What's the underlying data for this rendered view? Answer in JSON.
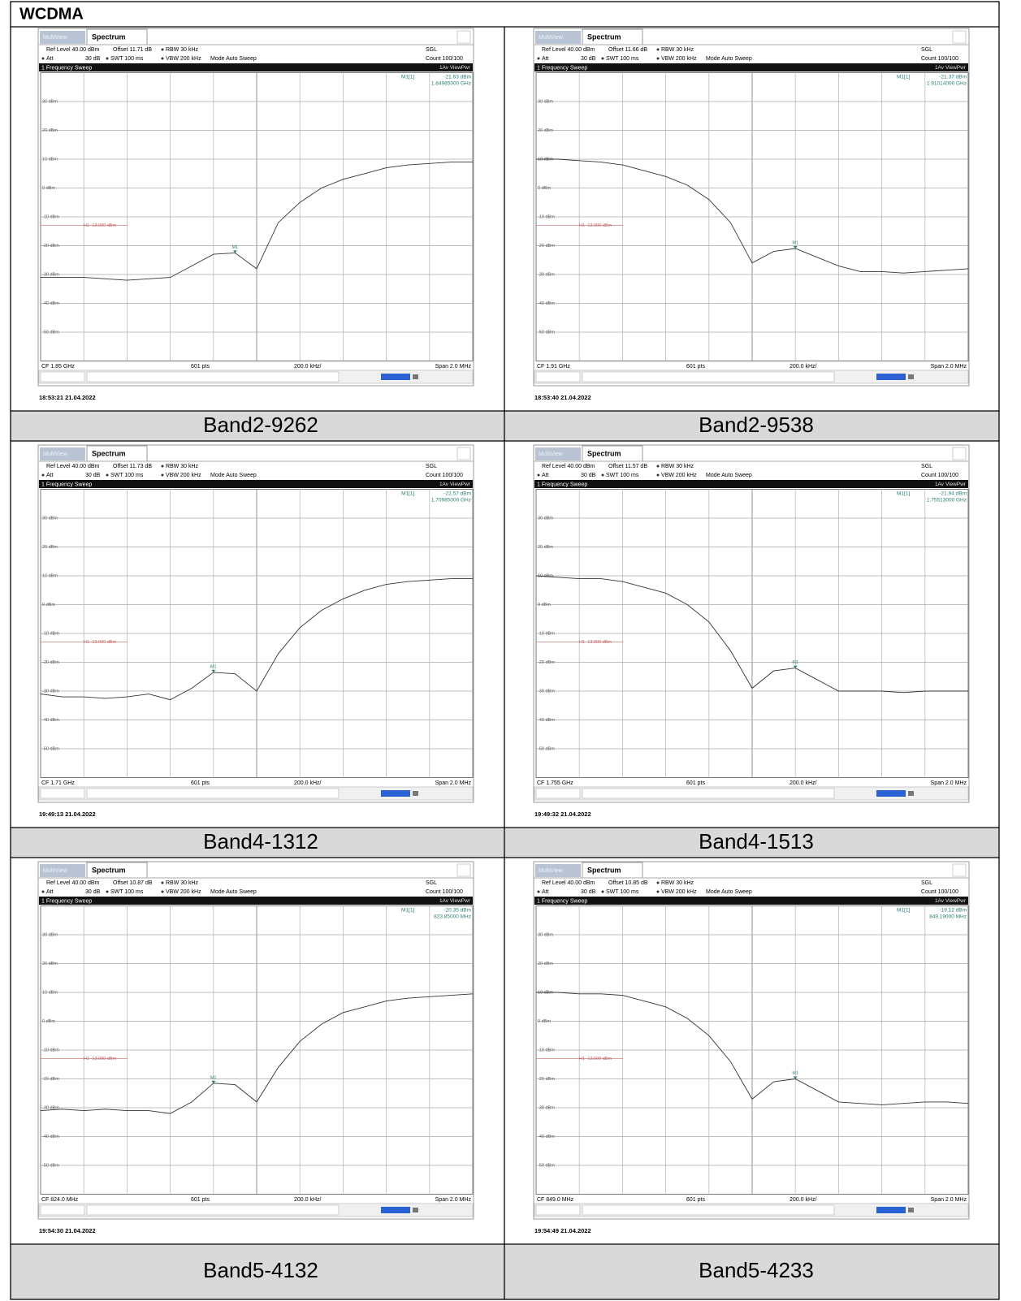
{
  "title": "WCDMA",
  "common": {
    "tabs": [
      "MultiView",
      "Spectrum"
    ],
    "ref_level": "Ref Level 40.00 dBm",
    "att": "Att",
    "att_value": "30 dB",
    "swt": "SWT 100 ms",
    "rbw": "RBW 30 kHz",
    "vbw": "VBW 200 kHz",
    "mode": "Mode Auto Sweep",
    "sgl": "SGL",
    "count": "Count 100/100",
    "sweep": "1 Frequency Sweep",
    "trace_mode": "1Av ViewPwr",
    "marker": "M1[1]",
    "marker_tag": "M1",
    "limit_label": "H1 -13.000 dBm",
    "limit_value": -13,
    "points": "601 pts",
    "division": "200.0 kHz/",
    "span": "Span 2.0 MHz",
    "ylim": [
      -60,
      40
    ],
    "yticks": [
      {
        "value": 30,
        "label": "30 dBm"
      },
      {
        "value": 20,
        "label": "20 dBm"
      },
      {
        "value": 10,
        "label": "10 dBm"
      },
      {
        "value": 0,
        "label": "0 dBm"
      },
      {
        "value": -10,
        "label": "-10 dBm"
      },
      {
        "value": -20,
        "label": "-20 dBm"
      },
      {
        "value": -30,
        "label": "-30 dBm"
      },
      {
        "value": -40,
        "label": "-40 dBm"
      },
      {
        "value": -50,
        "label": "-50 dBm"
      }
    ]
  },
  "panels": [
    {
      "caption": "Band2-9262",
      "offset": "Offset 11.71 dB",
      "marker_level": "-21.63 dBm",
      "marker_frequency": "1.84985000 GHz",
      "cf": "CF 1.85 GHz",
      "timestamp": "18:53:21 21.04.2022",
      "trace": [
        -31,
        -31,
        -31,
        -31.5,
        -32,
        -31.5,
        -31,
        -27,
        -23,
        -22.5,
        -28,
        -12,
        -5,
        0,
        3,
        5,
        7,
        8,
        8.5,
        9,
        9
      ]
    },
    {
      "caption": "Band2-9538",
      "offset": "Offset 11.66 dB",
      "marker_level": "-21.37 dBm",
      "marker_frequency": "1.91014000 GHz",
      "cf": "CF 1.91 GHz",
      "timestamp": "18:53:40 21.04.2022",
      "trace": [
        10,
        10,
        9.5,
        9,
        8,
        6,
        4,
        1,
        -4,
        -12,
        -26,
        -22,
        -21,
        -24,
        -27,
        -29,
        -29,
        -29.5,
        -29,
        -28.5,
        -28
      ]
    },
    {
      "caption": "Band4-1312",
      "offset": "Offset 11.73 dB",
      "marker_level": "-22.57 dBm",
      "marker_frequency": "1.70985000 GHz",
      "cf": "CF 1.71 GHz",
      "timestamp": "19:49:13 21.04.2022",
      "trace": [
        -31,
        -32,
        -32,
        -32.5,
        -32,
        -31,
        -33,
        -29,
        -23.5,
        -24,
        -30,
        -17,
        -8,
        -2,
        2,
        5,
        7,
        8,
        8.5,
        9,
        9
      ]
    },
    {
      "caption": "Band4-1513",
      "offset": "Offset 11.57 dB",
      "marker_level": "-21.94 dBm",
      "marker_frequency": "1.75513000 GHz",
      "cf": "CF 1.755 GHz",
      "timestamp": "19:49:32 21.04.2022",
      "trace": [
        10,
        9.5,
        9,
        9,
        8,
        6,
        4,
        0,
        -6,
        -16,
        -29,
        -23,
        -22,
        -26,
        -30,
        -30,
        -30,
        -30.5,
        -30,
        -30,
        -30
      ]
    },
    {
      "caption": "Band5-4132",
      "offset": "Offset 10.87 dB",
      "marker_level": "-20.35 dBm",
      "marker_frequency": "823.85000 MHz",
      "cf": "CF 824.0 MHz",
      "timestamp": "19:54:30 21.04.2022",
      "trace": [
        -31,
        -30.5,
        -31,
        -30.5,
        -31,
        -31,
        -32,
        -28,
        -21.5,
        -22,
        -28,
        -16,
        -7,
        -1,
        3,
        5,
        7,
        8,
        8.5,
        9,
        9.5
      ]
    },
    {
      "caption": "Band5-4233",
      "offset": "Offset 10.85 dB",
      "marker_level": "-19.12 dBm",
      "marker_frequency": "849.19000 MHz",
      "cf": "CF 849.0 MHz",
      "timestamp": "19:54:49 21.04.2022",
      "trace": [
        10,
        10,
        9.5,
        9.5,
        9,
        7,
        5,
        1,
        -5,
        -14,
        -27,
        -21,
        -20,
        -24,
        -28,
        -28.5,
        -29,
        -28.5,
        -28,
        -28,
        -28.5
      ]
    }
  ]
}
